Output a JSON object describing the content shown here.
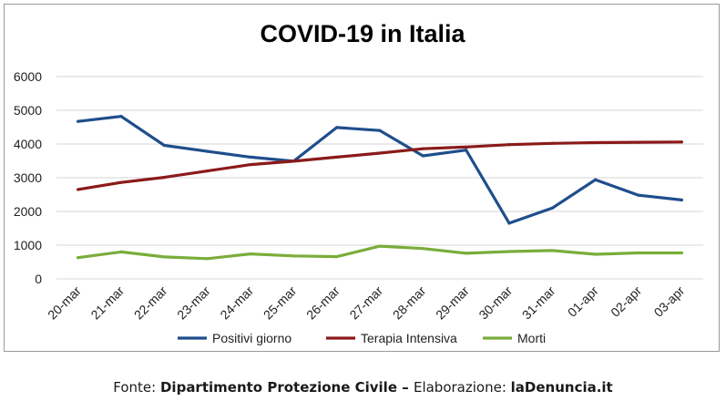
{
  "chart_data": {
    "type": "line",
    "title": "COVID-19 in Italia",
    "categories": [
      "20-mar",
      "21-mar",
      "22-mar",
      "23-mar",
      "24-mar",
      "25-mar",
      "26-mar",
      "27-mar",
      "28-mar",
      "29-mar",
      "30-mar",
      "31-mar",
      "01-apr",
      "02-apr",
      "03-apr"
    ],
    "ylim": [
      0,
      6000
    ],
    "yticks": [
      0,
      1000,
      2000,
      3000,
      4000,
      5000,
      6000
    ],
    "grid": true,
    "legend_position": "bottom",
    "series": [
      {
        "name": "Positivi giorno",
        "color": "#1f4e8c",
        "values": [
          4670,
          4820,
          3960,
          3780,
          3610,
          3490,
          4490,
          4400,
          3650,
          3820,
          1650,
          2100,
          2940,
          2480,
          2340
        ]
      },
      {
        "name": "Terapia Intensiva",
        "color": "#8b1a1a",
        "values": [
          2650,
          2860,
          3010,
          3200,
          3390,
          3490,
          3610,
          3730,
          3860,
          3910,
          3980,
          4020,
          4040,
          4050,
          4060
        ]
      },
      {
        "name": "Morti",
        "color": "#7aad3a",
        "values": [
          630,
          800,
          650,
          600,
          740,
          680,
          660,
          970,
          900,
          760,
          810,
          840,
          730,
          770,
          770
        ]
      }
    ]
  },
  "footer": {
    "prefix": "Fonte: ",
    "source": "Dipartimento Protezione Civile",
    "separator": " – ",
    "credit_label": "Elaborazione: ",
    "credit": "laDenuncia.it"
  }
}
